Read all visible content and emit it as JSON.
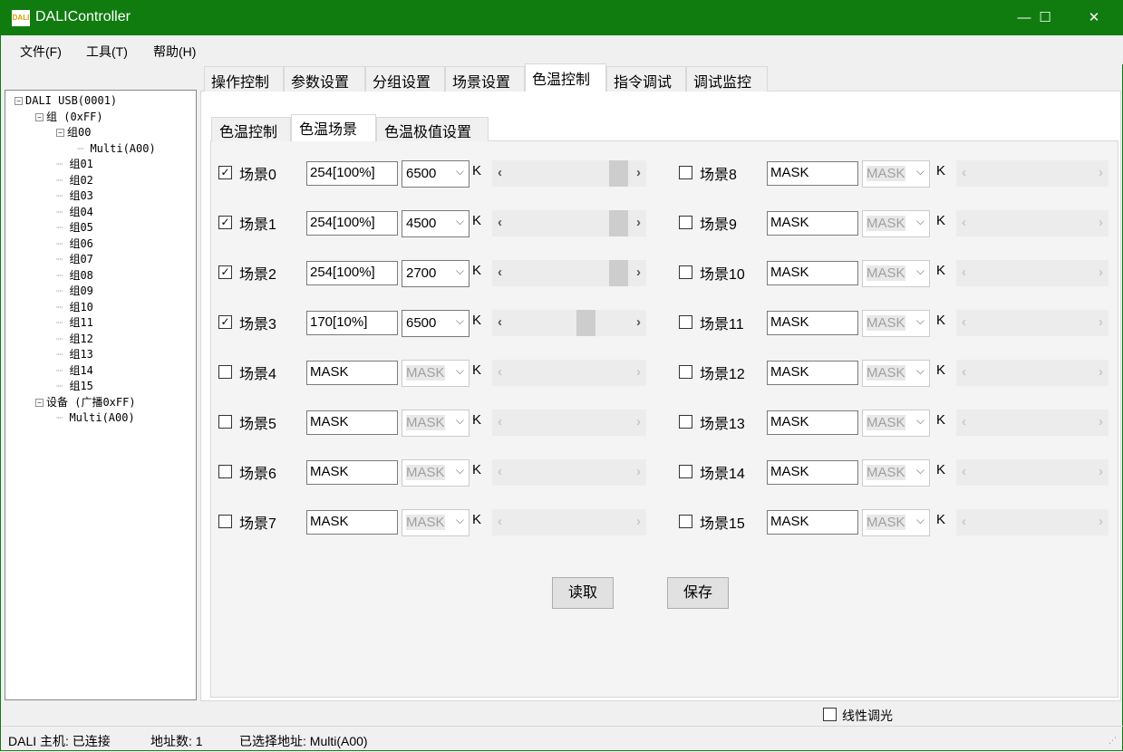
{
  "window": {
    "title": "DALIController",
    "icon": "dali-logo",
    "minimize": "—",
    "maximize": "☐",
    "close": "✕"
  },
  "menu": [
    "文件(F)",
    "工具(T)",
    "帮助(H)"
  ],
  "tree": [
    {
      "label": "DALI USB(0001)",
      "level": 0,
      "toggle": "−"
    },
    {
      "label": "组 (0xFF)",
      "level": 1,
      "toggle": "−"
    },
    {
      "label": "组00",
      "level": 2,
      "toggle": "−"
    },
    {
      "label": "Multi(A00)",
      "level": 3
    },
    {
      "label": "组01",
      "level": 2
    },
    {
      "label": "组02",
      "level": 2
    },
    {
      "label": "组03",
      "level": 2
    },
    {
      "label": "组04",
      "level": 2
    },
    {
      "label": "组05",
      "level": 2
    },
    {
      "label": "组06",
      "level": 2
    },
    {
      "label": "组07",
      "level": 2
    },
    {
      "label": "组08",
      "level": 2
    },
    {
      "label": "组09",
      "level": 2
    },
    {
      "label": "组10",
      "level": 2
    },
    {
      "label": "组11",
      "level": 2
    },
    {
      "label": "组12",
      "level": 2
    },
    {
      "label": "组13",
      "level": 2
    },
    {
      "label": "组14",
      "level": 2
    },
    {
      "label": "组15",
      "level": 2
    },
    {
      "label": "设备 (广播0xFF)",
      "level": 1,
      "toggle": "−"
    },
    {
      "label": "Multi(A00)",
      "level": 2
    }
  ],
  "outer_tabs": [
    "操作控制",
    "参数设置",
    "分组设置",
    "场景设置",
    "色温控制",
    "指令调试",
    "调试监控"
  ],
  "outer_active": 4,
  "inner_tabs": [
    "色温控制",
    "色温场景",
    "色温极值设置"
  ],
  "inner_active": 1,
  "unit": "K",
  "scenes": [
    {
      "label": "场景0",
      "checked": true,
      "level": "254[100%]",
      "cct": "6500",
      "slider": 1.0
    },
    {
      "label": "场景1",
      "checked": true,
      "level": "254[100%]",
      "cct": "4500",
      "slider": 1.0
    },
    {
      "label": "场景2",
      "checked": true,
      "level": "254[100%]",
      "cct": "2700",
      "slider": 1.0
    },
    {
      "label": "场景3",
      "checked": true,
      "level": "170[10%]",
      "cct": "6500",
      "slider": 0.67
    },
    {
      "label": "场景4",
      "checked": false,
      "level": "MASK",
      "cct": "MASK"
    },
    {
      "label": "场景5",
      "checked": false,
      "level": "MASK",
      "cct": "MASK"
    },
    {
      "label": "场景6",
      "checked": false,
      "level": "MASK",
      "cct": "MASK"
    },
    {
      "label": "场景7",
      "checked": false,
      "level": "MASK",
      "cct": "MASK"
    },
    {
      "label": "场景8",
      "checked": false,
      "level": "MASK",
      "cct": "MASK"
    },
    {
      "label": "场景9",
      "checked": false,
      "level": "MASK",
      "cct": "MASK"
    },
    {
      "label": "场景10",
      "checked": false,
      "level": "MASK",
      "cct": "MASK"
    },
    {
      "label": "场景11",
      "checked": false,
      "level": "MASK",
      "cct": "MASK"
    },
    {
      "label": "场景12",
      "checked": false,
      "level": "MASK",
      "cct": "MASK"
    },
    {
      "label": "场景13",
      "checked": false,
      "level": "MASK",
      "cct": "MASK"
    },
    {
      "label": "场景14",
      "checked": false,
      "level": "MASK",
      "cct": "MASK"
    },
    {
      "label": "场景15",
      "checked": false,
      "level": "MASK",
      "cct": "MASK"
    }
  ],
  "buttons": {
    "read": "读取",
    "save": "保存"
  },
  "linear_dimming": {
    "label": "线性调光",
    "checked": false
  },
  "status": {
    "host": "DALI 主机: 已连接",
    "count": "地址数: 1",
    "selected": "已选择地址: Multi(A00)"
  },
  "colors": {
    "titlebar": "#107c10"
  }
}
